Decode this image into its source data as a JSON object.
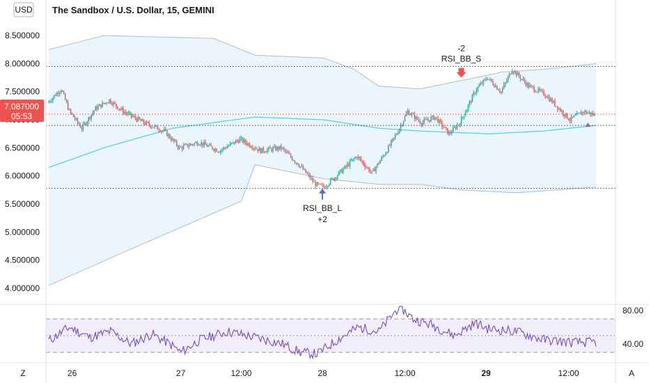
{
  "header": {
    "currency_button": "USD",
    "title": "The Sandbox / U.S. Dollar, 15, GEMINI"
  },
  "footer": {
    "left_button": "Z",
    "right_button": "A"
  },
  "price_tag": {
    "value": "7.087000",
    "countdown": "05:53",
    "color": "#ef5350"
  },
  "colors": {
    "up": "#26a69a",
    "down": "#ef5350",
    "band_fill": "#e3f2fd",
    "band_line": "#b0bec5",
    "basis": "#4dd0e1",
    "rsi": "#7e57c2",
    "rsi_fill": "#ede7f6",
    "arrow": "#5b6bbf"
  },
  "chart_data": [
    {
      "type": "candlestick",
      "title": "The Sandbox / U.S. Dollar, 15, GEMINI",
      "y_ticks": [
        "8.500000",
        "8.000000",
        "7.500000",
        "7.000000",
        "6.500000",
        "6.000000",
        "5.500000",
        "5.000000",
        "4.500000",
        "4.000000"
      ],
      "ylim": [
        3.8,
        8.7
      ],
      "x_ticks": [
        "26",
        "27",
        "12:00",
        "28",
        "12:00",
        "29",
        "12:00"
      ],
      "x_tick_bars": [
        17,
        96,
        140,
        199,
        259,
        318,
        378
      ],
      "bar_count": 398,
      "price_keypoints": [
        [
          0,
          7.3
        ],
        [
          10,
          7.55
        ],
        [
          16,
          7.15
        ],
        [
          25,
          6.85
        ],
        [
          35,
          7.2
        ],
        [
          45,
          7.35
        ],
        [
          55,
          7.15
        ],
        [
          70,
          6.95
        ],
        [
          85,
          6.8
        ],
        [
          96,
          6.5
        ],
        [
          110,
          6.6
        ],
        [
          125,
          6.45
        ],
        [
          140,
          6.65
        ],
        [
          155,
          6.45
        ],
        [
          170,
          6.5
        ],
        [
          183,
          6.2
        ],
        [
          195,
          5.85
        ],
        [
          201,
          5.8
        ],
        [
          210,
          6.0
        ],
        [
          225,
          6.35
        ],
        [
          236,
          6.05
        ],
        [
          248,
          6.5
        ],
        [
          255,
          6.8
        ],
        [
          262,
          7.15
        ],
        [
          272,
          6.95
        ],
        [
          282,
          7.05
        ],
        [
          292,
          6.75
        ],
        [
          300,
          6.95
        ],
        [
          312,
          7.55
        ],
        [
          320,
          7.75
        ],
        [
          330,
          7.5
        ],
        [
          338,
          7.9
        ],
        [
          350,
          7.6
        ],
        [
          362,
          7.45
        ],
        [
          372,
          7.2
        ],
        [
          380,
          7.0
        ],
        [
          390,
          7.15
        ],
        [
          398,
          7.087
        ]
      ],
      "band_upper": [
        [
          0,
          8.25
        ],
        [
          40,
          8.5
        ],
        [
          120,
          8.45
        ],
        [
          150,
          8.15
        ],
        [
          200,
          8.1
        ],
        [
          222,
          7.9
        ],
        [
          240,
          7.6
        ],
        [
          270,
          7.55
        ],
        [
          300,
          7.7
        ],
        [
          330,
          7.85
        ],
        [
          360,
          7.9
        ],
        [
          398,
          8.0
        ]
      ],
      "band_lower": [
        [
          0,
          4.05
        ],
        [
          60,
          4.7
        ],
        [
          140,
          5.55
        ],
        [
          150,
          6.2
        ],
        [
          200,
          5.95
        ],
        [
          240,
          5.85
        ],
        [
          270,
          5.85
        ],
        [
          300,
          5.75
        ],
        [
          340,
          5.7
        ],
        [
          398,
          5.8
        ]
      ],
      "basis": [
        [
          0,
          6.15
        ],
        [
          40,
          6.5
        ],
        [
          90,
          6.85
        ],
        [
          150,
          7.05
        ],
        [
          200,
          7.0
        ],
        [
          240,
          6.85
        ],
        [
          270,
          6.8
        ],
        [
          320,
          6.75
        ],
        [
          360,
          6.8
        ],
        [
          398,
          6.9
        ]
      ],
      "horizontal_lines": [
        7.95,
        7.1,
        6.9,
        5.78
      ],
      "annotations": [
        {
          "name": "sell-signal",
          "bar": 300,
          "price": 7.75,
          "label": "RSI_BB_S",
          "qty": "-2"
        },
        {
          "name": "buy-signal",
          "bar": 199,
          "price": 5.8,
          "label": "RSI_BB_L",
          "qty": "+2"
        }
      ]
    },
    {
      "type": "line",
      "y_ticks": [
        "80.00",
        "40.00"
      ],
      "ylim": [
        20,
        85
      ],
      "bands": [
        70,
        50,
        30
      ],
      "rsi_keypoints": [
        [
          0,
          44
        ],
        [
          15,
          60
        ],
        [
          30,
          48
        ],
        [
          45,
          55
        ],
        [
          60,
          40
        ],
        [
          75,
          52
        ],
        [
          90,
          38
        ],
        [
          96,
          30
        ],
        [
          110,
          45
        ],
        [
          130,
          55
        ],
        [
          150,
          48
        ],
        [
          170,
          40
        ],
        [
          183,
          30
        ],
        [
          195,
          28
        ],
        [
          210,
          45
        ],
        [
          225,
          60
        ],
        [
          240,
          55
        ],
        [
          250,
          75
        ],
        [
          255,
          85
        ],
        [
          265,
          70
        ],
        [
          280,
          62
        ],
        [
          295,
          50
        ],
        [
          310,
          65
        ],
        [
          320,
          58
        ],
        [
          340,
          55
        ],
        [
          360,
          45
        ],
        [
          380,
          42
        ],
        [
          398,
          42
        ]
      ]
    }
  ]
}
